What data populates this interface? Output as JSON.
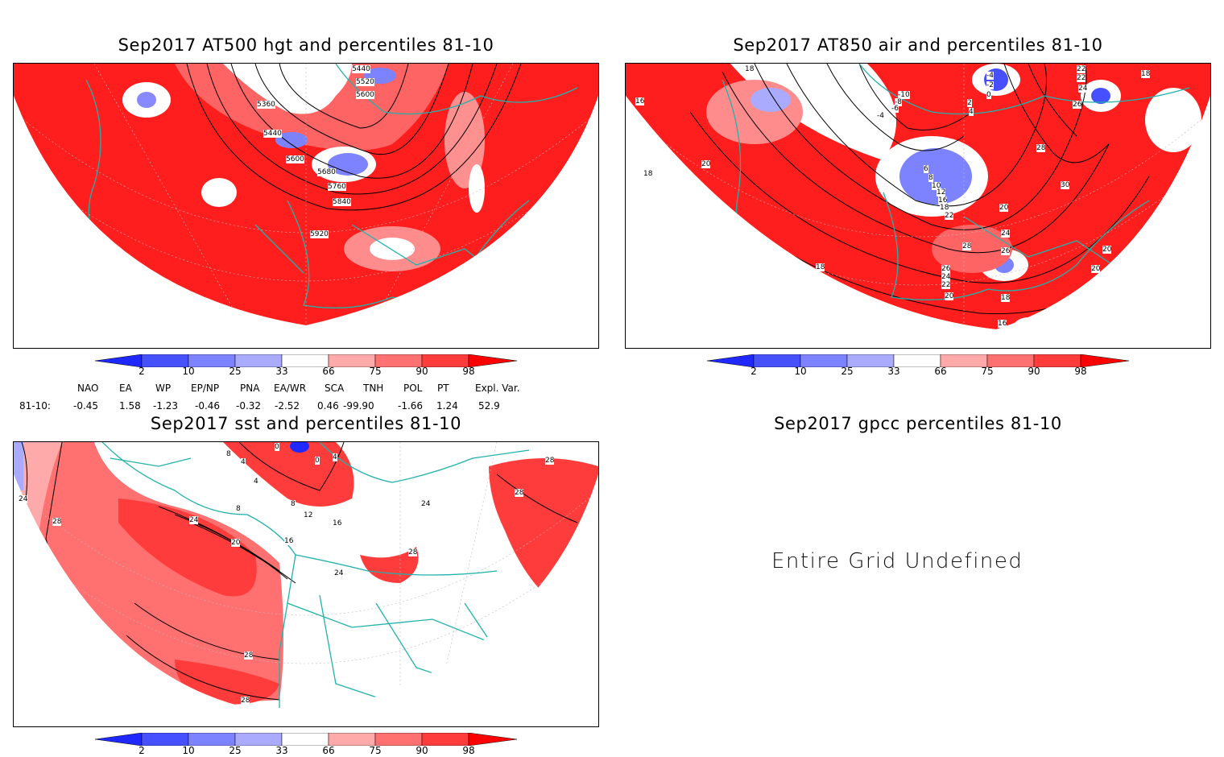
{
  "panels": {
    "hgt500": {
      "title": "Sep2017 AT500 hgt and percentiles 81-10",
      "contour_labels": [
        "5440",
        "5520",
        "5600",
        "5360",
        "5440",
        "5600",
        "5680",
        "5760",
        "5840",
        "5920"
      ]
    },
    "air850": {
      "title": "Sep2017 AT850 air and percentiles 81-10",
      "contour_labels": [
        "18",
        "-4",
        "-2",
        "0",
        "2",
        "4",
        "22",
        "22",
        "24",
        "18",
        "26",
        "16",
        "-10",
        "-8",
        "-6",
        "-4",
        "28",
        "20",
        "18",
        "6",
        "8",
        "10",
        "12",
        "16",
        "18",
        "22",
        "20",
        "30",
        "24",
        "26",
        "28",
        "20",
        "18",
        "26",
        "24",
        "22",
        "20",
        "18",
        "20",
        "16"
      ]
    },
    "sst": {
      "title": "Sep2017 sst and percentiles 81-10",
      "contour_labels": [
        "0",
        "8",
        "4",
        "0",
        "4",
        "28",
        "24",
        "4",
        "8",
        "8",
        "12",
        "24",
        "28",
        "24",
        "16",
        "20",
        "16",
        "24",
        "28",
        "28",
        "28",
        "24",
        "28",
        "28"
      ]
    },
    "gpcc": {
      "title": "Sep2017 gpcc percentiles 81-10",
      "message": "Entire Grid Undefined"
    }
  },
  "legend": {
    "labels": [
      "2",
      "10",
      "25",
      "33",
      "66",
      "75",
      "90",
      "98"
    ],
    "colors": [
      "#1e28ff",
      "#4650ff",
      "#7d82ff",
      "#aaaaff",
      "#ffffff",
      "#ffaaaa",
      "#ff7070",
      "#ff3c3c",
      "#ff0000"
    ]
  },
  "indices": {
    "headers": [
      "NAO",
      "EA",
      "WP",
      "EP/NP",
      "PNA",
      "EA/WR",
      "SCA",
      "TNH",
      "POL",
      "PT",
      "Expl. Var."
    ],
    "row_label": "81-10:",
    "values": [
      "-0.45",
      "1.58",
      "-1.23",
      "-0.46",
      "-0.32",
      "-2.52",
      "0.46",
      "-99.90",
      "-1.66",
      "1.24",
      "52.9"
    ]
  }
}
